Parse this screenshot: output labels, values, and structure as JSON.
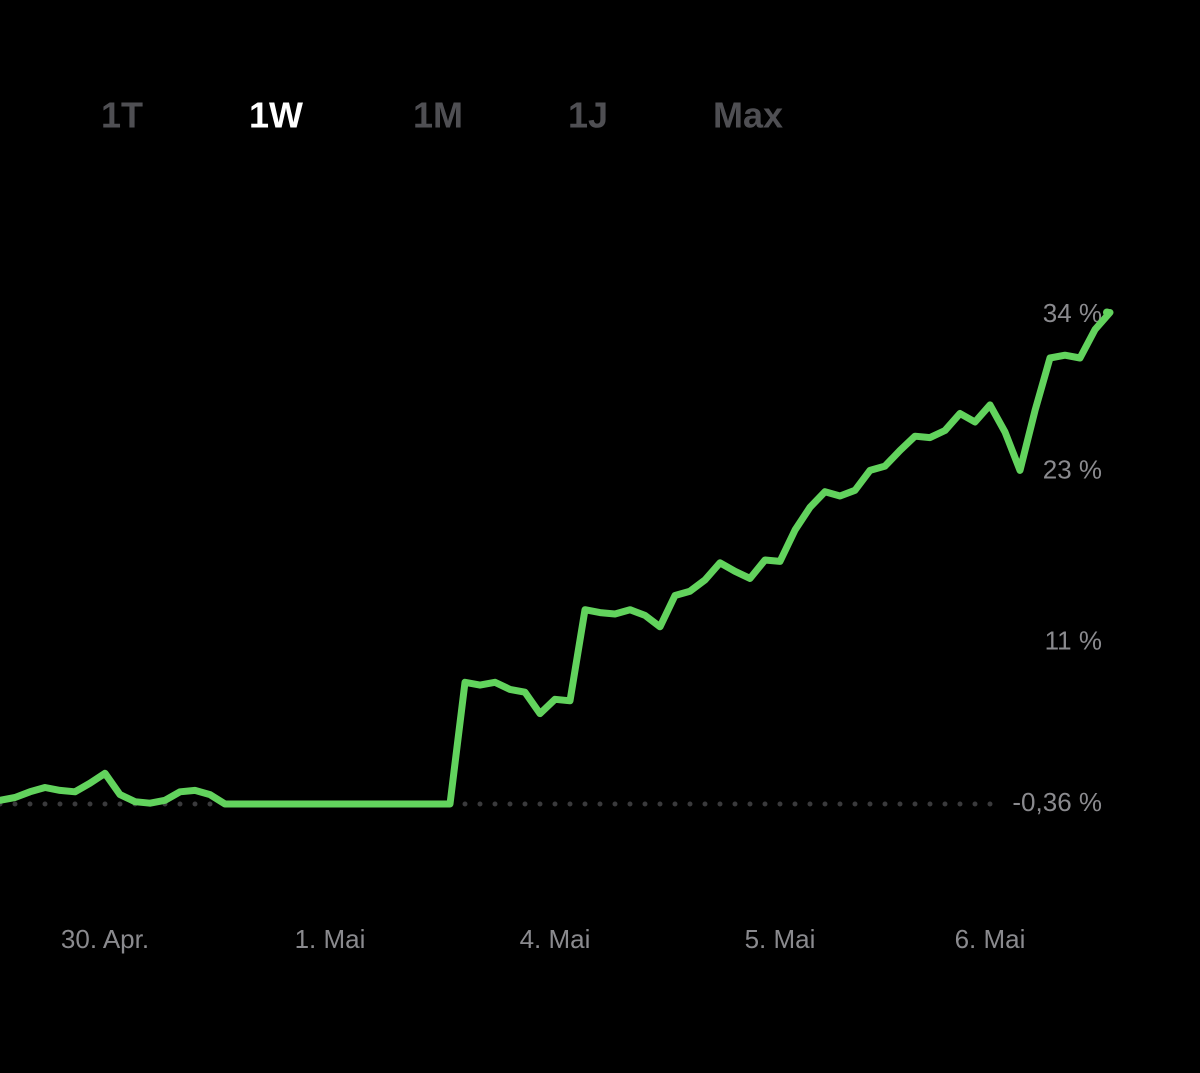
{
  "tabs": [
    "1T",
    "1W",
    "1M",
    "1J",
    "Max"
  ],
  "selected_tab": 1,
  "chart_data": {
    "type": "line",
    "categories": [
      null,
      null,
      null,
      null,
      null,
      null,
      null,
      "30. Apr.",
      null,
      null,
      null,
      null,
      null,
      null,
      null,
      null,
      null,
      null,
      null,
      null,
      null,
      null,
      "1. Mai",
      null,
      null,
      null,
      null,
      null,
      null,
      null,
      null,
      null,
      null,
      null,
      null,
      null,
      null,
      "4. Mai",
      null,
      null,
      null,
      null,
      null,
      null,
      null,
      null,
      null,
      null,
      null,
      null,
      null,
      null,
      "5. Mai",
      null,
      null,
      null,
      null,
      null,
      null,
      null,
      null,
      null,
      null,
      null,
      null,
      null,
      "6. Mai",
      null,
      null,
      null,
      null,
      null,
      null,
      null,
      null
    ],
    "values": [
      -0.1,
      0.1,
      0.5,
      0.8,
      0.6,
      0.5,
      1.1,
      1.8,
      0.3,
      -0.2,
      -0.3,
      -0.1,
      0.5,
      0.6,
      0.3,
      -0.36,
      -0.36,
      -0.36,
      -0.36,
      -0.36,
      -0.36,
      -0.36,
      -0.36,
      -0.36,
      -0.36,
      -0.36,
      -0.36,
      -0.36,
      -0.36,
      -0.36,
      -0.36,
      8.2,
      8.0,
      8.2,
      7.7,
      7.5,
      6.0,
      7.0,
      6.9,
      13.3,
      13.1,
      13.0,
      13.3,
      12.9,
      12.1,
      14.3,
      14.6,
      15.4,
      16.6,
      16.0,
      15.5,
      16.8,
      16.7,
      18.9,
      20.5,
      21.6,
      21.3,
      21.7,
      23.1,
      23.4,
      24.5,
      25.5,
      25.4,
      25.9,
      27.1,
      26.5,
      27.7,
      25.8,
      23.1,
      27.3,
      31.0,
      31.2,
      31.0,
      33.0,
      34.2
    ],
    "color": "#62d35d",
    "ylim": [
      -5,
      40
    ],
    "yticks": [
      {
        "value": 34,
        "label": "34 %"
      },
      {
        "value": 23,
        "label": "23 %"
      },
      {
        "value": 11,
        "label": "11 %"
      },
      {
        "value": -0.36,
        "label": "-0,36 %"
      }
    ],
    "baseline": -0.36
  }
}
